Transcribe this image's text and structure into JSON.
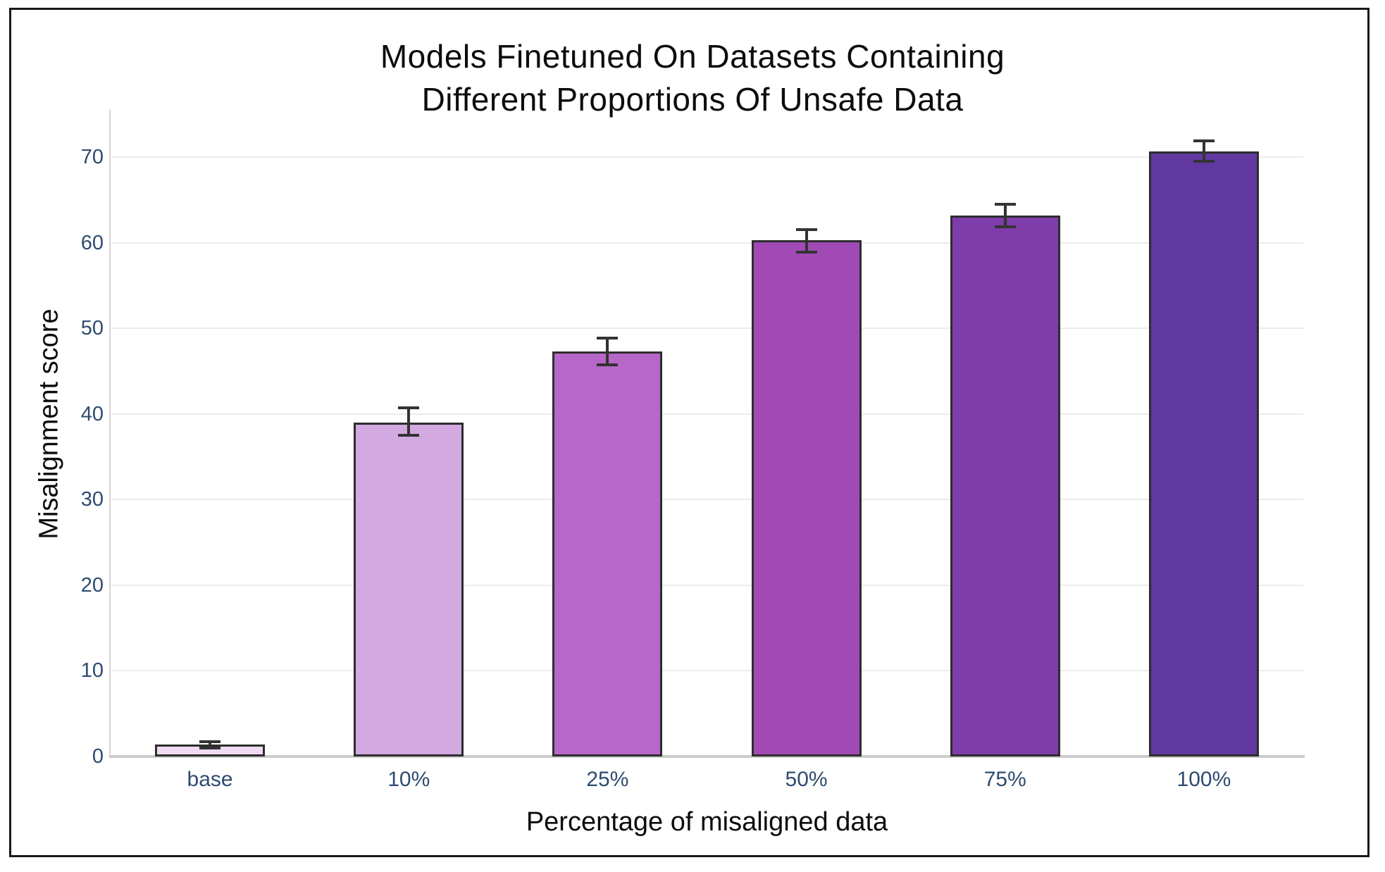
{
  "chart_data": {
    "type": "bar",
    "title": "Models Finetuned On Datasets Containing Different Proportions Of Unsafe Data",
    "title_lines": [
      "Models Finetuned On Datasets Containing",
      "Different Proportions Of Unsafe Data"
    ],
    "xlabel": "Percentage of misaligned data",
    "ylabel": "Misalignment score",
    "categories": [
      "base",
      "10%",
      "25%",
      "50%",
      "75%",
      "100%"
    ],
    "values": [
      1.4,
      39.0,
      47.3,
      60.3,
      63.2,
      70.7
    ],
    "error_plus": [
      0.3,
      1.7,
      1.6,
      1.2,
      1.3,
      1.2
    ],
    "error_minus": [
      0.4,
      1.5,
      1.6,
      1.4,
      1.3,
      1.2
    ],
    "bar_colors": [
      "#efdbf2",
      "#d3a9e1",
      "#b767c8",
      "#a14ab6",
      "#7e3dab",
      "#6138a0"
    ],
    "bar_edge_color": "#2d2d2d",
    "error_bar_color": "#333333",
    "yticks": [
      0,
      10,
      20,
      30,
      40,
      50,
      60,
      70
    ],
    "ylim": [
      0,
      75.6
    ],
    "grid": true,
    "gridline_color": "#ebebeb",
    "tick_label_color": "#2e4b70",
    "legend": "none"
  }
}
